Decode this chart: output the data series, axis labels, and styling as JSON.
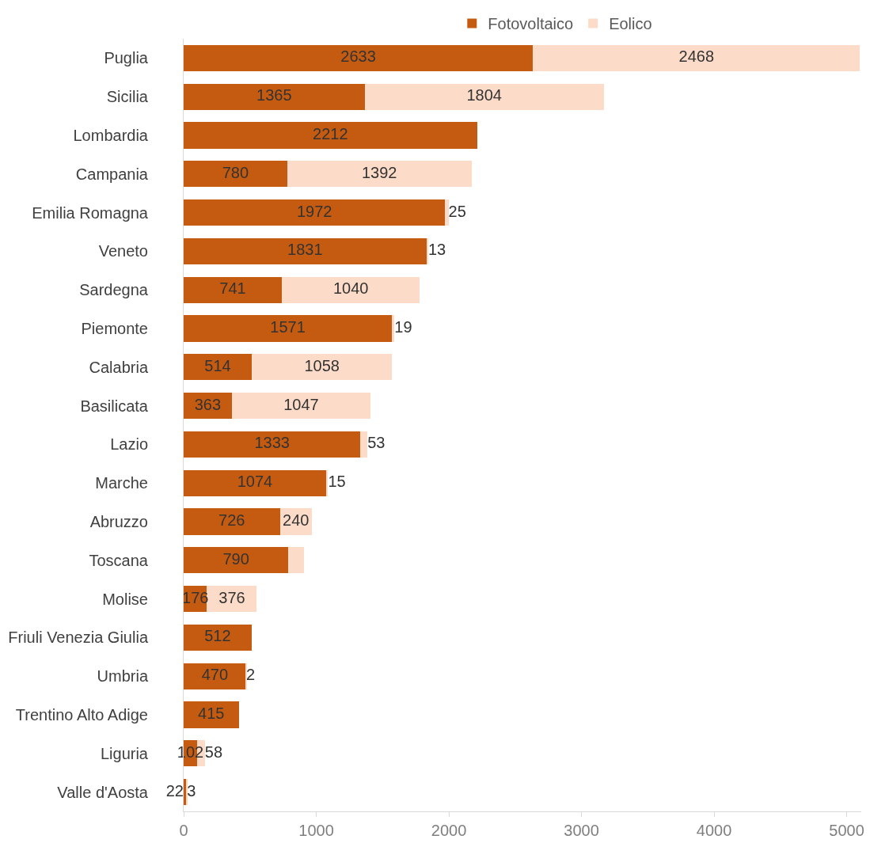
{
  "chart_data": {
    "type": "bar",
    "orientation": "horizontal",
    "stacked": true,
    "categories": [
      "Puglia",
      "Sicilia",
      "Lombardia",
      "Campania",
      "Emilia Romagna",
      "Veneto",
      "Sardegna",
      "Piemonte",
      "Calabria",
      "Basilicata",
      "Lazio",
      "Marche",
      "Abruzzo",
      "Toscana",
      "Molise",
      "Friuli Venezia Giulia",
      "Umbria",
      "Trentino Alto Adige",
      "Liguria",
      "Valle d'Aosta"
    ],
    "series": [
      {
        "name": "Fotovoltaico",
        "color": "#c55a11",
        "values": [
          2633,
          1365,
          2212,
          780,
          1972,
          1831,
          741,
          1571,
          514,
          363,
          1333,
          1074,
          726,
          790,
          176,
          512,
          470,
          415,
          102,
          22
        ],
        "value_labels": [
          "2633",
          "1365",
          "2212",
          "780",
          "1972",
          "1831",
          "741",
          "1571",
          "514",
          "363",
          "1333",
          "1074",
          "726",
          "790",
          "176",
          "512",
          "470",
          "415",
          "102",
          "22"
        ]
      },
      {
        "name": "Eolico",
        "color": "#fcdcc8",
        "values": [
          2468,
          1804,
          null,
          1392,
          25,
          13,
          1040,
          19,
          1058,
          1047,
          53,
          15,
          240,
          118,
          376,
          null,
          2,
          null,
          58,
          3
        ],
        "value_labels": [
          "2468",
          "1804",
          null,
          "1392",
          "25",
          "13",
          "1040",
          "19",
          "1058",
          "1047",
          "53",
          "15",
          "240",
          null,
          "376",
          null,
          "2",
          null,
          "58",
          "3"
        ]
      }
    ],
    "xlim": [
      0,
      5110
    ],
    "xticks": [
      0,
      1000,
      2000,
      3000,
      4000,
      5000
    ],
    "legend": "top"
  }
}
